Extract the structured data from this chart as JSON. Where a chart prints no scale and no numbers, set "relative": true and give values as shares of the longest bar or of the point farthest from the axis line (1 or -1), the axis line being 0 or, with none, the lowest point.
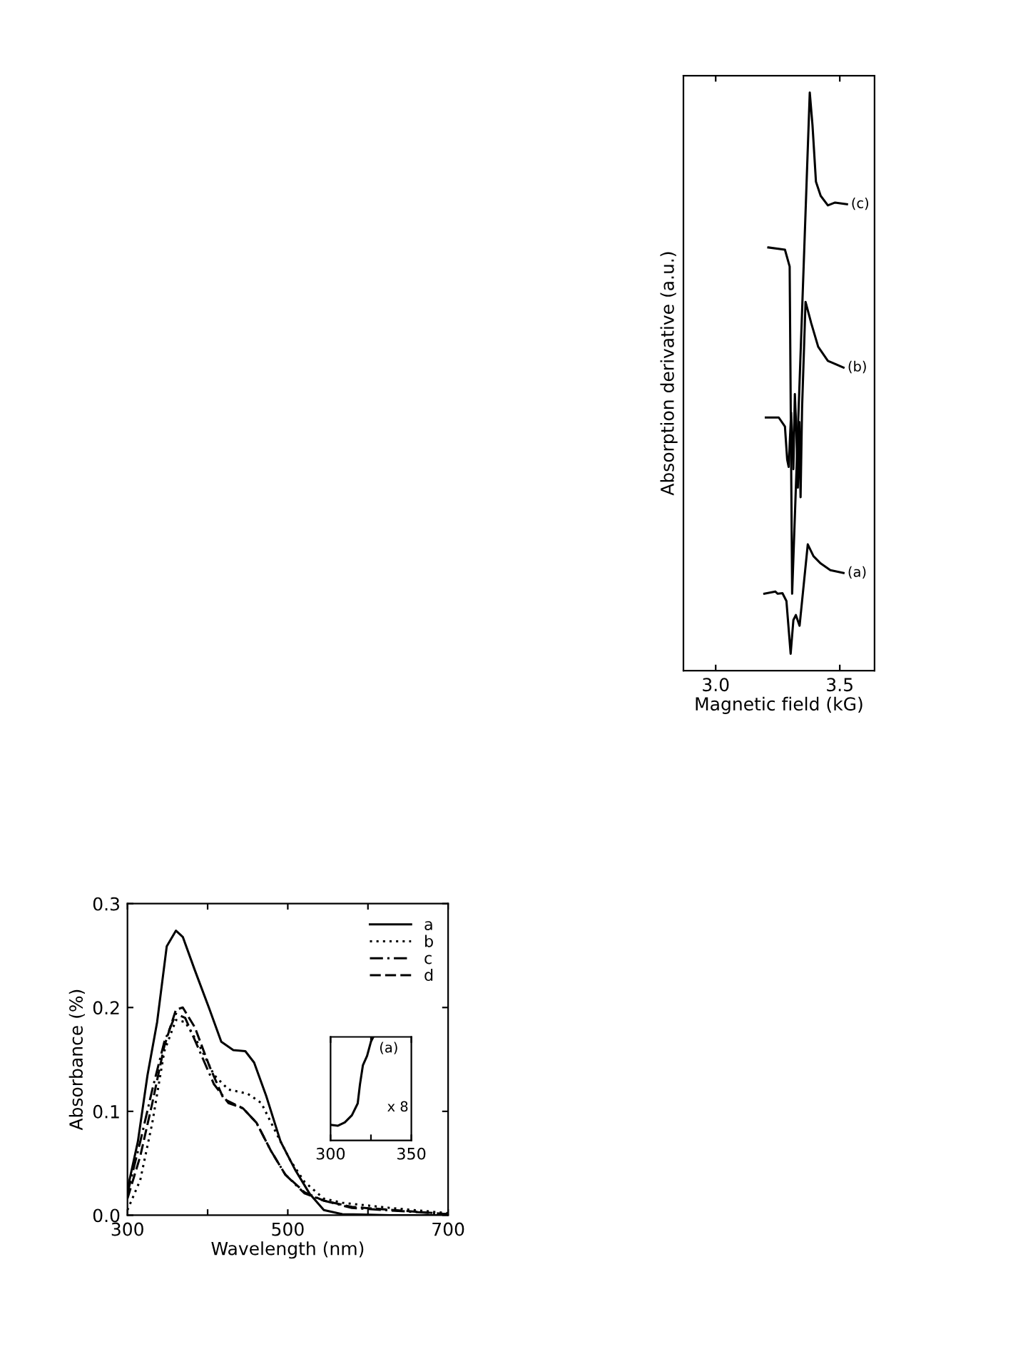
{
  "chart_data": [
    {
      "type": "line",
      "xlabel": "Magnetic field (kG)",
      "ylabel": "Absorption derivative (a.u.)",
      "relative": true,
      "xlim": [
        2.87,
        3.64
      ],
      "xticks": [
        {
          "value": 3.0,
          "label": "3.0"
        },
        {
          "value": 3.5,
          "label": "3.5"
        }
      ],
      "tick_labels": "x",
      "grid": false,
      "legend": false,
      "marker": "none",
      "line_style": "solid",
      "series": [
        {
          "name": "(c)",
          "color": "#000000",
          "x": [
            3.212,
            3.279,
            3.298,
            3.308,
            3.379,
            3.39,
            3.404,
            3.423,
            3.452,
            3.481,
            3.529
          ],
          "values": [
            0.724,
            0.72,
            0.69,
            0.107,
            1.0,
            0.942,
            0.841,
            0.816,
            0.799,
            0.804,
            0.801
          ]
        },
        {
          "name": "(b)",
          "color": "#000000",
          "x": [
            3.202,
            3.254,
            3.279,
            3.288,
            3.294,
            3.304,
            3.313,
            3.319,
            3.325,
            3.331,
            3.337,
            3.342,
            3.348,
            3.362,
            3.385,
            3.413,
            3.452,
            3.515
          ],
          "values": [
            0.421,
            0.421,
            0.405,
            0.346,
            0.333,
            0.43,
            0.329,
            0.463,
            0.396,
            0.296,
            0.413,
            0.279,
            0.438,
            0.627,
            0.589,
            0.547,
            0.522,
            0.51
          ]
        },
        {
          "name": "(a)",
          "color": "#000000",
          "x": [
            3.196,
            3.24,
            3.25,
            3.269,
            3.285,
            3.302,
            3.313,
            3.323,
            3.338,
            3.371,
            3.394,
            3.423,
            3.462,
            3.515
          ],
          "values": [
            0.107,
            0.111,
            0.107,
            0.108,
            0.094,
            0.0,
            0.06,
            0.069,
            0.05,
            0.195,
            0.174,
            0.161,
            0.149,
            0.144
          ]
        }
      ]
    },
    {
      "type": "line",
      "xlabel": "Wavelength (nm)",
      "ylabel": "Absorbance (%)",
      "xlim": [
        300,
        700
      ],
      "ylim": [
        0,
        0.3
      ],
      "xticks": [
        300,
        {
          "value": 400,
          "label": null
        },
        500,
        {
          "value": 600,
          "label": null
        },
        700
      ],
      "yticks": [
        {
          "value": 0,
          "label": "0.0"
        },
        {
          "value": 0.1,
          "label": "0.1"
        },
        {
          "value": 0.2,
          "label": "0.2"
        },
        {
          "value": 0.3,
          "label": "0.3"
        }
      ],
      "grid": false,
      "legend": "top right",
      "marker": "none",
      "series": [
        {
          "name": "a",
          "color": "#000000",
          "line_style": "solid",
          "x": [
            300,
            313,
            325,
            337,
            349,
            360.5,
            369,
            384,
            402,
            417,
            432,
            447,
            458,
            473,
            491,
            509,
            527,
            545,
            568,
            628,
            700
          ],
          "values": [
            0.025,
            0.071,
            0.135,
            0.186,
            0.259,
            0.274,
            0.268,
            0.236,
            0.199,
            0.167,
            0.159,
            0.158,
            0.147,
            0.115,
            0.071,
            0.044,
            0.021,
            0.005,
            0.001,
            0,
            0
          ]
        },
        {
          "name": "b",
          "color": "#000000",
          "line_style": "dotted",
          "x": [
            300,
            316,
            331,
            346,
            360.5,
            372,
            390,
            408,
            426,
            450,
            467,
            485,
            503,
            521,
            545,
            568,
            628,
            700
          ],
          "values": [
            0.005,
            0.034,
            0.089,
            0.158,
            0.188,
            0.186,
            0.163,
            0.135,
            0.121,
            0.117,
            0.108,
            0.08,
            0.053,
            0.032,
            0.016,
            0.012,
            0.007,
            0.002
          ]
        },
        {
          "name": "c",
          "color": "#000000",
          "line_style": "dashdot",
          "x": [
            300,
            316,
            331,
            346,
            360.5,
            372,
            390,
            408,
            426,
            444,
            461,
            479,
            497,
            521,
            545,
            580,
            700
          ],
          "values": [
            0.021,
            0.071,
            0.121,
            0.167,
            0.194,
            0.19,
            0.158,
            0.126,
            0.108,
            0.103,
            0.089,
            0.062,
            0.039,
            0.021,
            0.014,
            0.007,
            0.001
          ]
        },
        {
          "name": "d",
          "color": "#000000",
          "line_style": "dashed",
          "x": [
            300,
            316,
            331,
            346,
            360.5,
            369,
            384,
            402,
            420,
            444,
            461,
            479,
            497,
            521,
            545,
            580,
            700
          ],
          "values": [
            0.016,
            0.057,
            0.108,
            0.163,
            0.198,
            0.2,
            0.181,
            0.144,
            0.112,
            0.103,
            0.089,
            0.062,
            0.039,
            0.022,
            0.014,
            0.008,
            0.001
          ]
        }
      ]
    },
    {
      "type": "line",
      "relative": true,
      "xlim": [
        300,
        350
      ],
      "xticks": [
        300,
        {
          "value": 325,
          "label": null
        },
        350
      ],
      "tick_labels": "x",
      "grid": false,
      "legend": false,
      "marker": "none",
      "line_style": "solid",
      "annotations": [
        "(a)",
        "x 8"
      ],
      "series": [
        {
          "color": "#000000",
          "x": [
            300,
            304.4,
            308.8,
            313.2,
            316.8,
            318.2,
            320,
            322.6,
            325,
            326.5
          ],
          "values": [
            0.151,
            0.142,
            0.174,
            0.243,
            0.358,
            0.541,
            0.725,
            0.817,
            0.954,
            1.0
          ]
        }
      ]
    }
  ]
}
